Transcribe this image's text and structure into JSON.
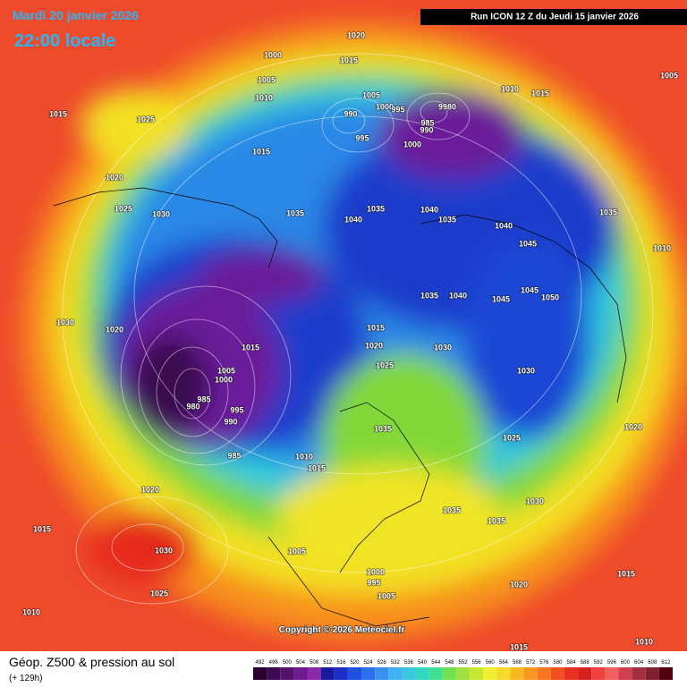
{
  "header": {
    "date": "Mardi 20 janvier 2026",
    "time": "22:00 locale",
    "run": "Run ICON 12 Z du Jeudi 15 janvier 2026"
  },
  "footer": {
    "title": "Géop. Z500 & pression au sol",
    "subtitle": "(+ 129h)",
    "copyright": "Copyright © 2026 Meteociel.fr"
  },
  "scale": {
    "labels": [
      492,
      496,
      500,
      504,
      508,
      512,
      516,
      520,
      524,
      528,
      532,
      536,
      540,
      544,
      548,
      552,
      556,
      560,
      564,
      568,
      572,
      576,
      580,
      584,
      588,
      592,
      596,
      600,
      604,
      608,
      612
    ],
    "colors": [
      "#2a0030",
      "#3c0a4e",
      "#55116e",
      "#6e1a8c",
      "#8a2aa8",
      "#1a1aa0",
      "#1e2fc8",
      "#2050e0",
      "#2a70ec",
      "#3a90f0",
      "#40b0f0",
      "#38c8e0",
      "#30d8c0",
      "#40e090",
      "#70e050",
      "#a0e040",
      "#c8e830",
      "#f0f030",
      "#f8d828",
      "#f8b820",
      "#f89820",
      "#f87820",
      "#f05020",
      "#e83020",
      "#d82020",
      "#f04040",
      "#f06060",
      "#d04050",
      "#a03040",
      "#802030",
      "#500010"
    ]
  },
  "isobar_labels": [
    1020,
    1000,
    1015,
    1005,
    1010,
    1005,
    1000,
    995,
    990,
    995,
    985,
    9980,
    990,
    1000,
    1010,
    1015,
    1005,
    1015,
    1025,
    1015,
    1020,
    1025,
    1030,
    1035,
    1040,
    1035,
    1040,
    1035,
    1045,
    1035,
    1010,
    1030,
    1020,
    1015,
    1005,
    1000,
    985,
    980,
    995,
    990,
    985,
    1010,
    1015,
    1015,
    1020,
    1025,
    1030,
    1035,
    1030,
    1025,
    1020,
    1020,
    1015,
    1030,
    1025,
    1010,
    1005,
    1000,
    995,
    1005,
    1035,
    1035,
    1030,
    1020,
    1015,
    1015,
    1010,
    1040,
    1045,
    1050,
    1035,
    1040,
    1045
  ]
}
